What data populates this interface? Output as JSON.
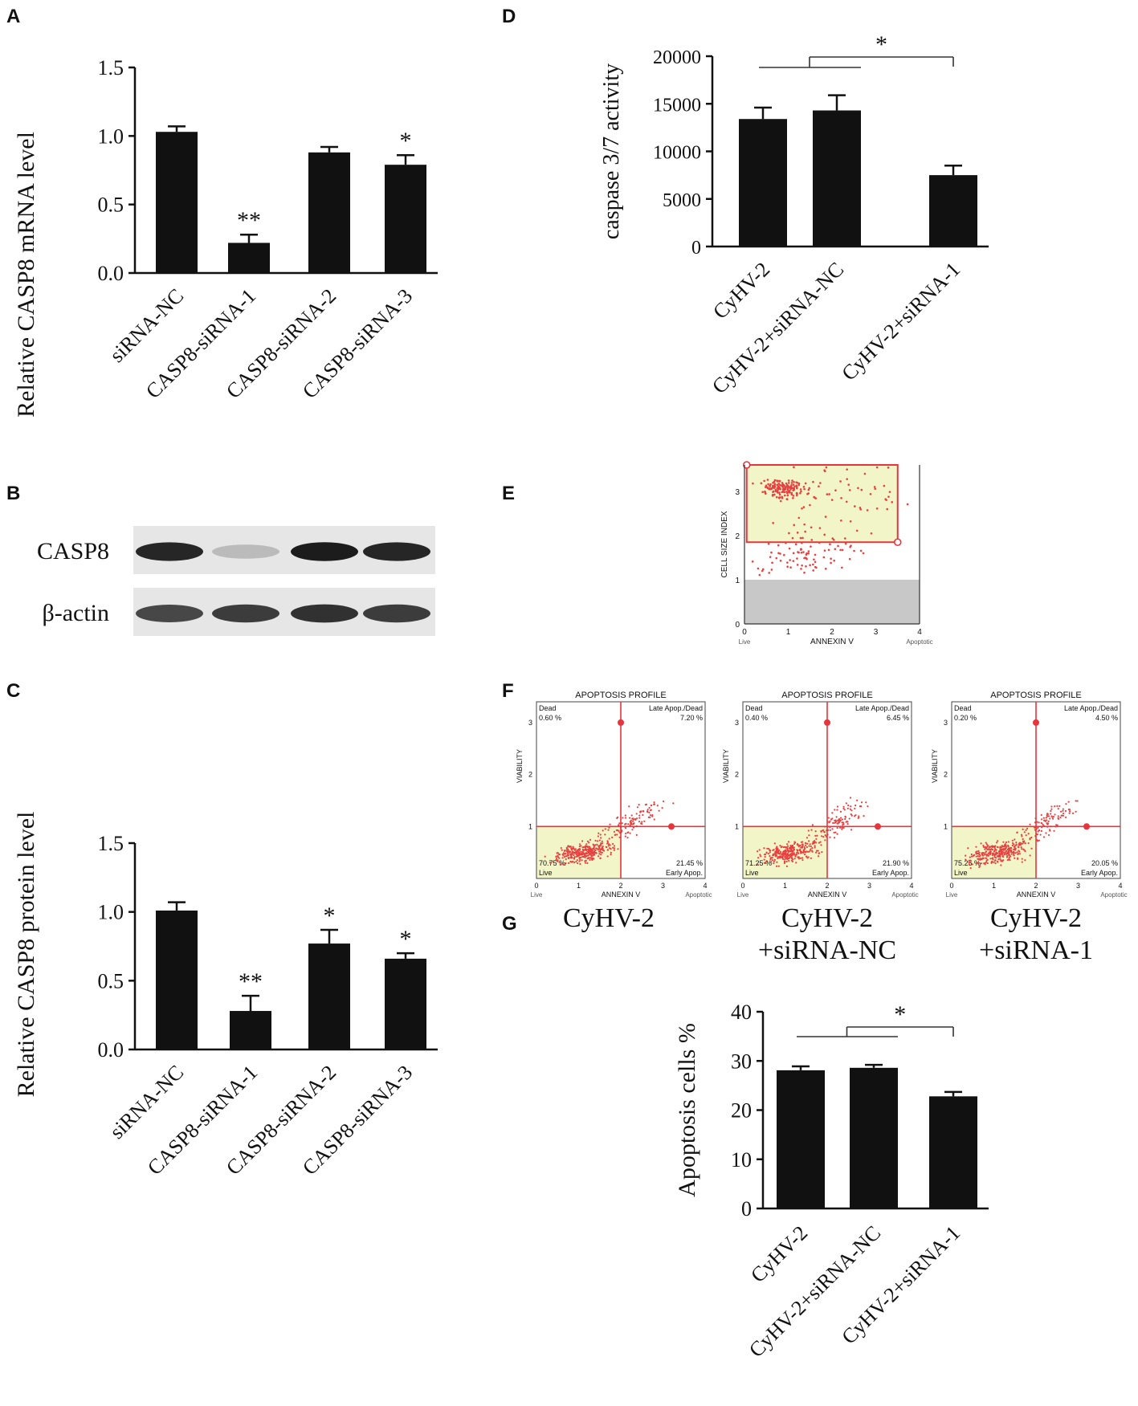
{
  "figure": {
    "panels": [
      {
        "label": "A"
      },
      {
        "label": "B"
      },
      {
        "label": "C"
      },
      {
        "label": "D"
      },
      {
        "label": "E"
      },
      {
        "label": "F"
      },
      {
        "label": "G"
      }
    ]
  },
  "colors": {
    "bar": "#111111",
    "gate": "#e8343c",
    "dots": "#e84040",
    "quad_live": "#f2f5c8",
    "debris": "#c8c8c8"
  },
  "chart_data": [
    {
      "panel": "A",
      "type": "bar",
      "ylabel": "Relative CASP8 mRNA level",
      "categories": [
        "siRNA-NC",
        "CASP8-siRNA-1",
        "CASP8-siRNA-2",
        "CASP8-siRNA-3"
      ],
      "values": [
        1.03,
        0.22,
        0.88,
        0.79
      ],
      "errors": [
        0.04,
        0.06,
        0.04,
        0.07
      ],
      "annotations": [
        "",
        "**",
        "",
        "*"
      ],
      "ylim": [
        0,
        1.5
      ],
      "yticks": [
        0.0,
        0.5,
        1.0,
        1.5
      ],
      "ytick_labels": [
        "0.0",
        "0.5",
        "1.0",
        "1.5"
      ]
    },
    {
      "panel": "C",
      "type": "bar",
      "ylabel": "Relative CASP8 protein  level",
      "categories": [
        "siRNA-NC",
        "CASP8-siRNA-1",
        "CASP8-siRNA-2",
        "CASP8-siRNA-3"
      ],
      "values": [
        1.01,
        0.28,
        0.77,
        0.66
      ],
      "errors": [
        0.06,
        0.11,
        0.1,
        0.04
      ],
      "annotations": [
        "",
        "**",
        "*",
        "*"
      ],
      "ylim": [
        0,
        1.5
      ],
      "yticks": [
        0.0,
        0.5,
        1.0,
        1.5
      ],
      "ytick_labels": [
        "0.0",
        "0.5",
        "1.0",
        "1.5"
      ]
    },
    {
      "panel": "D",
      "type": "bar",
      "ylabel": "caspase 3/7 activity",
      "categories": [
        "CyHV-2",
        "CyHV-2+siRNA-NC",
        "CyHV-2+siRNA-1"
      ],
      "values": [
        13400,
        14300,
        7500
      ],
      "errors": [
        1200,
        1600,
        1000
      ],
      "significance": "*",
      "ylim": [
        0,
        20000
      ],
      "yticks": [
        0,
        5000,
        10000,
        15000,
        20000
      ],
      "ytick_labels": [
        "0",
        "5000",
        "10000",
        "15000",
        "20000"
      ]
    },
    {
      "panel": "G",
      "type": "bar",
      "ylabel": "Apoptosis cells %",
      "categories": [
        "CyHV-2",
        "CyHV-2+siRNA-NC",
        "CyHV-2+siRNA-1"
      ],
      "values": [
        28.1,
        28.6,
        22.8
      ],
      "errors": [
        0.8,
        0.6,
        0.9
      ],
      "significance": "*",
      "ylim": [
        0,
        40
      ],
      "yticks": [
        0,
        10,
        20,
        30,
        40
      ],
      "ytick_labels": [
        "0",
        "10",
        "20",
        "30",
        "40"
      ]
    }
  ],
  "blot": {
    "bands": [
      {
        "label": "CASP8",
        "intensities": [
          0.9,
          0.2,
          0.95,
          0.9
        ]
      },
      {
        "label": "β-actin",
        "intensities": [
          0.75,
          0.8,
          0.85,
          0.8
        ]
      }
    ]
  },
  "flow_gate": {
    "ylabel": "CELL SIZE INDEX",
    "xlabel": "ANNEXIN V",
    "x_left": "Live",
    "x_right": "Apoptotic",
    "ticks": [
      "0",
      "1",
      "2",
      "3",
      "4"
    ],
    "yticks": [
      "0",
      "1",
      "2",
      "3"
    ],
    "dots": [
      {
        "x": 0.9,
        "y": 3.05,
        "w": 0.55,
        "h": 0.25,
        "n": 150
      },
      {
        "x": 2.0,
        "y": 2.8,
        "w": 2.2,
        "h": 1.4,
        "n": 70
      },
      {
        "x": 1.3,
        "y": 1.5,
        "w": 1.8,
        "h": 0.7,
        "n": 90
      }
    ]
  },
  "flow_profiles": [
    {
      "title": "APOPTOSIS PROFILE",
      "q_dead_label": "Dead",
      "q_dead": "0.60 %",
      "q_late_label": "Late Apop./Dead",
      "q_late": "7.20 %",
      "q_live_label": "Live",
      "q_live": "70.75 %",
      "q_early_label": "Early Apop.",
      "q_early": "21.45 %",
      "ylabel": "VIABILITY",
      "xlabel": "ANNEXIN V",
      "x_left": "Live",
      "x_right": "Apoptotic",
      "ticks": [
        "0",
        "1",
        "2",
        "3",
        "4"
      ],
      "yticks": [
        "1",
        "2",
        "3"
      ],
      "caption": [
        "CyHV-2"
      ]
    },
    {
      "title": "APOPTOSIS PROFILE",
      "q_dead_label": "Dead",
      "q_dead": "0.40 %",
      "q_late_label": "Late Apop./Dead",
      "q_late": "6.45 %",
      "q_live_label": "Live",
      "q_live": "71.25 %",
      "q_early_label": "Early Apop.",
      "q_early": "21.90 %",
      "ylabel": "VIABILITY",
      "xlabel": "ANNEXIN V",
      "x_left": "Live",
      "x_right": "Apoptotic",
      "ticks": [
        "0",
        "1",
        "2",
        "3",
        "4"
      ],
      "yticks": [
        "1",
        "2",
        "3"
      ],
      "caption": [
        "CyHV-2",
        "+siRNA-NC"
      ]
    },
    {
      "title": "APOPTOSIS PROFILE",
      "q_dead_label": "Dead",
      "q_dead": "0.20 %",
      "q_late_label": "Late Apop./Dead",
      "q_late": "4.50 %",
      "q_live_label": "Live",
      "q_live": "75.25 %",
      "q_early_label": "Early Apop.",
      "q_early": "20.05 %",
      "ylabel": "VIABILITY",
      "xlabel": "ANNEXIN V",
      "x_left": "Live",
      "x_right": "Apoptotic",
      "ticks": [
        "0",
        "1",
        "2",
        "3",
        "4"
      ],
      "yticks": [
        "1",
        "2",
        "3"
      ],
      "caption": [
        "CyHV-2",
        "+siRNA-1"
      ]
    }
  ]
}
